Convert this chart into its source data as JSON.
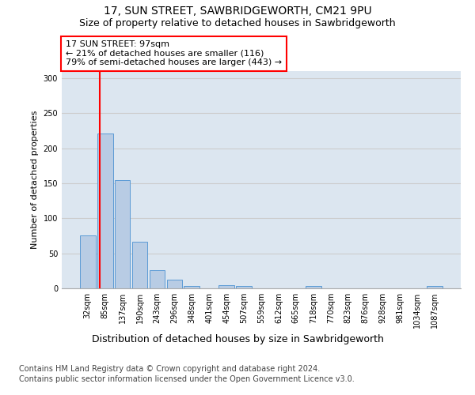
{
  "title1": "17, SUN STREET, SAWBRIDGEWORTH, CM21 9PU",
  "title2": "Size of property relative to detached houses in Sawbridgeworth",
  "xlabel": "Distribution of detached houses by size in Sawbridgeworth",
  "ylabel": "Number of detached properties",
  "categories": [
    "32sqm",
    "85sqm",
    "137sqm",
    "190sqm",
    "243sqm",
    "296sqm",
    "348sqm",
    "401sqm",
    "454sqm",
    "507sqm",
    "559sqm",
    "612sqm",
    "665sqm",
    "718sqm",
    "770sqm",
    "823sqm",
    "876sqm",
    "928sqm",
    "981sqm",
    "1034sqm",
    "1087sqm"
  ],
  "values": [
    76,
    221,
    154,
    67,
    26,
    12,
    3,
    0,
    4,
    3,
    0,
    0,
    0,
    3,
    0,
    0,
    0,
    0,
    0,
    0,
    3
  ],
  "bar_color": "#b8cce4",
  "bar_edge_color": "#5b9bd5",
  "annotation_text_line1": "17 SUN STREET: 97sqm",
  "annotation_text_line2": "← 21% of detached houses are smaller (116)",
  "annotation_text_line3": "79% of semi-detached houses are larger (443) →",
  "annotation_box_color": "white",
  "annotation_box_edge_color": "red",
  "vline_color": "red",
  "ylim": [
    0,
    310
  ],
  "yticks": [
    0,
    50,
    100,
    150,
    200,
    250,
    300
  ],
  "grid_color": "#cccccc",
  "background_color": "#dce6f0",
  "footer_line1": "Contains HM Land Registry data © Crown copyright and database right 2024.",
  "footer_line2": "Contains public sector information licensed under the Open Government Licence v3.0.",
  "title1_fontsize": 10,
  "title2_fontsize": 9,
  "xlabel_fontsize": 9,
  "ylabel_fontsize": 8,
  "tick_fontsize": 7,
  "footer_fontsize": 7,
  "annotation_fontsize": 8
}
